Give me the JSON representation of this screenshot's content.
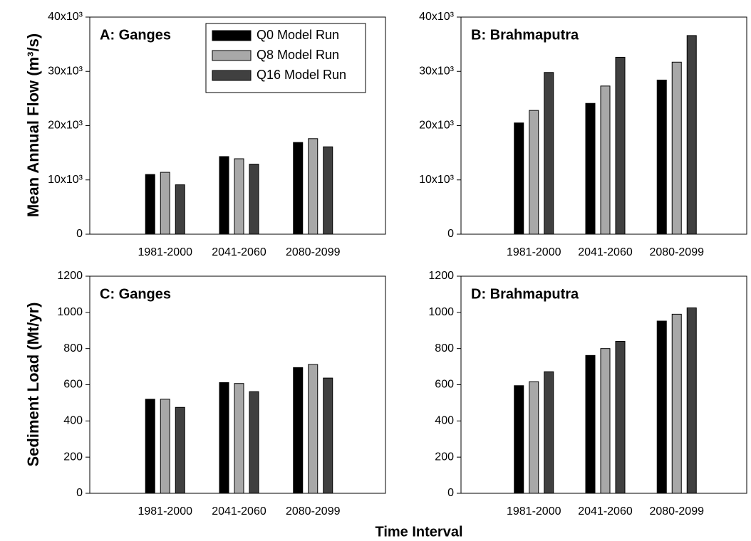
{
  "chart_data": [
    {
      "type": "bar",
      "title": "A: Ganges",
      "ylabel": "Mean Annual Flow (m³/s)",
      "categories": [
        "1981-2000",
        "2041-2060",
        "2080-2099"
      ],
      "series": [
        {
          "name": "Q0 Model Run",
          "color": "#000000",
          "values": [
            11000,
            14300,
            16900
          ]
        },
        {
          "name": "Q8 Model Run",
          "color": "#a8a8a8",
          "values": [
            11400,
            13900,
            17600
          ]
        },
        {
          "name": "Q16 Model Run",
          "color": "#404040",
          "values": [
            9100,
            12900,
            16100
          ]
        }
      ],
      "ylim": [
        0,
        40000
      ],
      "yticks": [
        0,
        {
          "value": 10000,
          "label": "10x10³"
        },
        {
          "value": 20000,
          "label": "20x10³"
        },
        {
          "value": 30000,
          "label": "30x10³"
        },
        {
          "value": 40000,
          "label": "40x10³"
        }
      ],
      "legend": "upper center"
    },
    {
      "type": "bar",
      "title": "B: Brahmaputra",
      "categories": [
        "1981-2000",
        "2041-2060",
        "2080-2099"
      ],
      "series": [
        {
          "color": "#000000",
          "values": [
            20500,
            24100,
            28400
          ]
        },
        {
          "color": "#a8a8a8",
          "values": [
            22800,
            27300,
            31700
          ]
        },
        {
          "color": "#404040",
          "values": [
            29800,
            32600,
            36600
          ]
        }
      ],
      "ylim": [
        0,
        40000
      ],
      "yticks": [
        0,
        {
          "value": 10000,
          "label": "10x10³"
        },
        {
          "value": 20000,
          "label": "20x10³"
        },
        {
          "value": 30000,
          "label": "30x10³"
        },
        {
          "value": 40000,
          "label": "40x10³"
        }
      ]
    },
    {
      "type": "bar",
      "title": "C: Ganges",
      "ylabel": "Sediment Load (Mt/yr)",
      "xlabel": "Time Interval",
      "categories": [
        "1981-2000",
        "2041-2060",
        "2080-2099"
      ],
      "series": [
        {
          "color": "#000000",
          "values": [
            520,
            612,
            695
          ]
        },
        {
          "color": "#a8a8a8",
          "values": [
            520,
            607,
            712
          ]
        },
        {
          "color": "#404040",
          "values": [
            475,
            562,
            637
          ]
        }
      ],
      "ylim": [
        0,
        1200
      ],
      "yticks": [
        0,
        200,
        400,
        600,
        800,
        1000,
        1200
      ]
    },
    {
      "type": "bar",
      "title": "D: Brahmaputra",
      "categories": [
        "1981-2000",
        "2041-2060",
        "2080-2099"
      ],
      "series": [
        {
          "color": "#000000",
          "values": [
            595,
            762,
            952
          ]
        },
        {
          "color": "#a8a8a8",
          "values": [
            617,
            800,
            990
          ]
        },
        {
          "color": "#404040",
          "values": [
            672,
            840,
            1025
          ]
        }
      ],
      "ylim": [
        0,
        1200
      ],
      "yticks": [
        0,
        200,
        400,
        600,
        800,
        1000,
        1200
      ]
    }
  ]
}
